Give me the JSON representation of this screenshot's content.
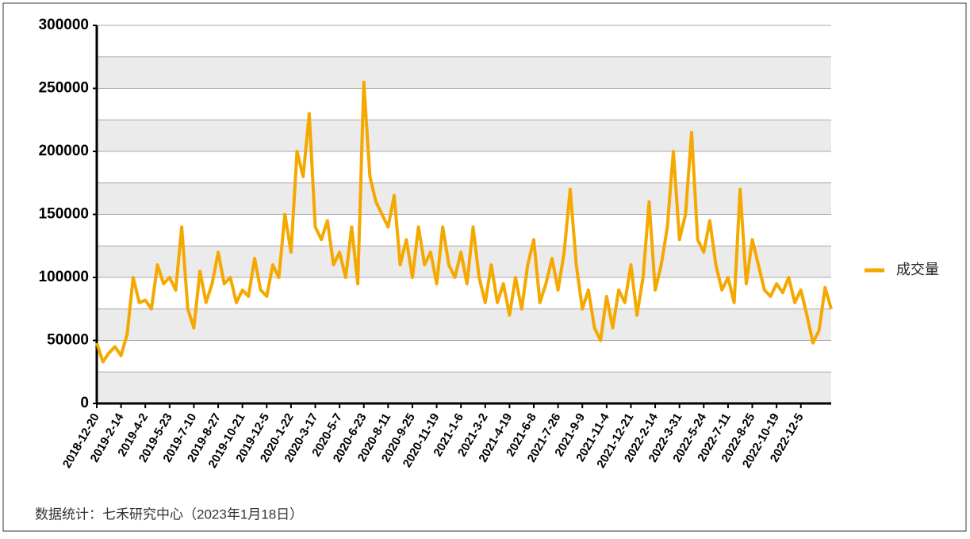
{
  "chart_data": {
    "type": "line",
    "note": "数据统计：七禾研究中心（2023年1月18日）",
    "categories": [
      "2018-12-20",
      null,
      null,
      null,
      "2019-2-14",
      null,
      null,
      null,
      "2019-4-2",
      null,
      null,
      null,
      "2019-5-23",
      null,
      null,
      null,
      "2019-7-10",
      null,
      null,
      null,
      "2019-8-27",
      null,
      null,
      null,
      "2019-10-21",
      null,
      null,
      null,
      "2019-12-5",
      null,
      null,
      null,
      "2020-1-22",
      null,
      null,
      null,
      "2020-3-17",
      null,
      null,
      null,
      "2020-5-7",
      null,
      null,
      null,
      "2020-6-23",
      null,
      null,
      null,
      "2020-8-11",
      null,
      null,
      null,
      "2020-9-25",
      null,
      null,
      null,
      "2020-11-19",
      null,
      null,
      null,
      "2021-1-6",
      null,
      null,
      null,
      "2021-3-2",
      null,
      null,
      null,
      "2021-4-19",
      null,
      null,
      null,
      "2021-6-8",
      null,
      null,
      null,
      "2021-7-26",
      null,
      null,
      null,
      "2021-9-9",
      null,
      null,
      null,
      "2021-11-4",
      null,
      null,
      null,
      "2021-12-21",
      null,
      null,
      null,
      "2022-2-14",
      null,
      null,
      null,
      "2022-3-31",
      null,
      null,
      null,
      "2022-5-24",
      null,
      null,
      null,
      "2022-7-11",
      null,
      null,
      null,
      "2022-8-25",
      null,
      null,
      null,
      "2022-10-19",
      null,
      null,
      null,
      "2022-12-5",
      null,
      null,
      null,
      null,
      null
    ],
    "series": [
      {
        "name": "成交量",
        "color": "#f5a800",
        "values": [
          48000,
          33000,
          40000,
          45000,
          38000,
          55000,
          100000,
          80000,
          82000,
          75000,
          110000,
          95000,
          100000,
          90000,
          140000,
          75000,
          60000,
          105000,
          80000,
          95000,
          120000,
          95000,
          100000,
          80000,
          90000,
          85000,
          115000,
          90000,
          85000,
          110000,
          100000,
          150000,
          120000,
          200000,
          180000,
          230000,
          140000,
          130000,
          145000,
          110000,
          120000,
          100000,
          140000,
          95000,
          255000,
          180000,
          160000,
          150000,
          140000,
          165000,
          110000,
          130000,
          100000,
          140000,
          110000,
          120000,
          95000,
          140000,
          110000,
          100000,
          120000,
          95000,
          140000,
          100000,
          80000,
          110000,
          80000,
          95000,
          70000,
          100000,
          75000,
          110000,
          130000,
          80000,
          95000,
          115000,
          90000,
          120000,
          170000,
          110000,
          75000,
          90000,
          60000,
          50000,
          85000,
          60000,
          90000,
          80000,
          110000,
          70000,
          100000,
          160000,
          90000,
          110000,
          140000,
          200000,
          130000,
          150000,
          215000,
          130000,
          120000,
          145000,
          110000,
          90000,
          100000,
          80000,
          170000,
          95000,
          130000,
          110000,
          90000,
          85000,
          95000,
          88000,
          100000,
          80000,
          90000,
          70000,
          48000,
          58000,
          92000,
          75000
        ]
      }
    ],
    "ylim": [
      0,
      300000
    ],
    "yticks": [
      0,
      50000,
      100000,
      150000,
      200000,
      250000,
      300000
    ],
    "grid": true,
    "legend": "right"
  }
}
